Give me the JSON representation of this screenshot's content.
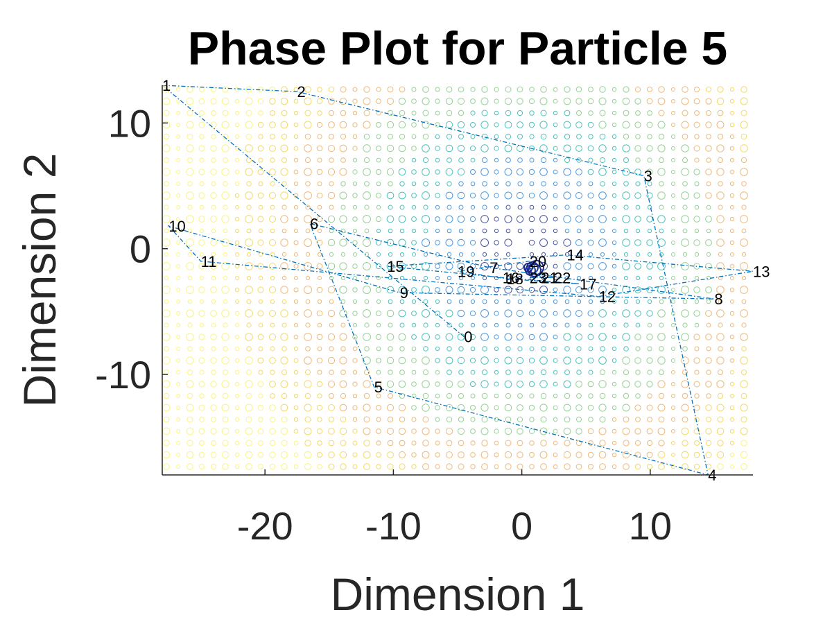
{
  "chart_data": {
    "type": "line",
    "title": "Phase Plot for Particle 5",
    "xlabel": "Dimension 1",
    "ylabel": "Dimension 2",
    "xlim": [
      -28,
      18
    ],
    "ylim": [
      -18,
      13
    ],
    "xticks": [
      -20,
      -10,
      0,
      10
    ],
    "yticks": [
      -10,
      0,
      10
    ],
    "xtick_labels": [
      "-20",
      "-10",
      "0",
      "10"
    ],
    "ytick_labels": [
      "-10",
      "0",
      "10"
    ],
    "grid": false,
    "legend": "none",
    "background": "contour",
    "series": [
      {
        "line_style": "dash-dot",
        "color": "#0072BD",
        "points": [
          {
            "label": "0",
            "x": -4.5,
            "y": -7.0
          },
          {
            "label": "1",
            "x": -28.0,
            "y": 13.0
          },
          {
            "label": "2",
            "x": -17.5,
            "y": 12.5
          },
          {
            "label": "3",
            "x": 9.5,
            "y": 5.8
          },
          {
            "label": "4",
            "x": 14.5,
            "y": -18.0
          },
          {
            "label": "5",
            "x": -11.5,
            "y": -11.0
          },
          {
            "label": "6",
            "x": -16.5,
            "y": 2.0
          },
          {
            "label": "7",
            "x": -2.5,
            "y": -1.5
          },
          {
            "label": "8",
            "x": 15.0,
            "y": -4.0
          },
          {
            "label": "9",
            "x": -9.5,
            "y": -3.5
          },
          {
            "label": "10",
            "x": -27.5,
            "y": 1.8
          },
          {
            "label": "11",
            "x": -25.0,
            "y": -1.0
          },
          {
            "label": "12",
            "x": 6.0,
            "y": -3.8
          },
          {
            "label": "13",
            "x": 18.0,
            "y": -1.8
          },
          {
            "label": "14",
            "x": 3.5,
            "y": -0.5
          },
          {
            "label": "15",
            "x": -10.5,
            "y": -1.4
          },
          {
            "label": "16",
            "x": -1.5,
            "y": -2.3
          },
          {
            "label": "17",
            "x": 4.5,
            "y": -2.8
          },
          {
            "label": "18",
            "x": -1.2,
            "y": -2.4
          },
          {
            "label": "19",
            "x": -5.0,
            "y": -1.8
          },
          {
            "label": "20",
            "x": 0.6,
            "y": -1.0
          },
          {
            "label": "21",
            "x": 1.5,
            "y": -2.3
          },
          {
            "label": "22",
            "x": 2.5,
            "y": -2.3
          },
          {
            "label": "23",
            "x": 0.6,
            "y": -2.3
          }
        ]
      }
    ],
    "contour_colors": [
      "#1A2A8A",
      "#1F7FD6",
      "#20B2AA",
      "#7AC47A",
      "#E8A857",
      "#F0D040",
      "#F8F060"
    ]
  }
}
